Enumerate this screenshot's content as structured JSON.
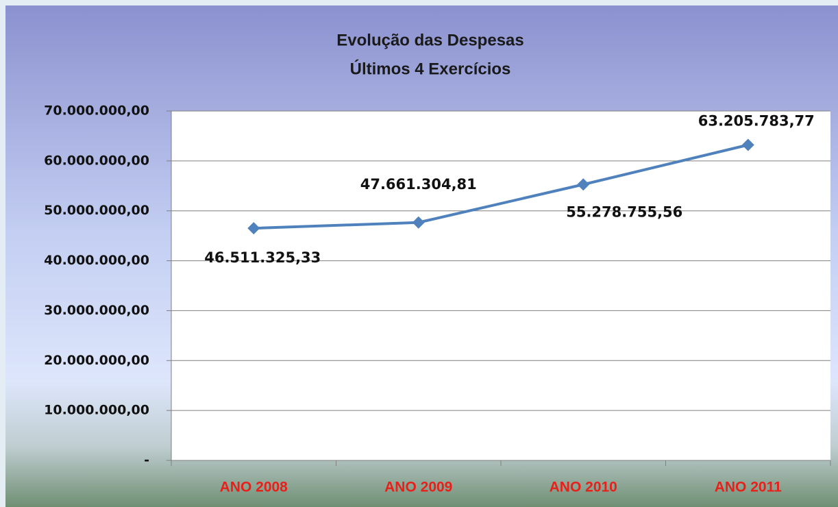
{
  "chart_data": {
    "type": "line",
    "title": "Evolução das Despesas",
    "subtitle": "Últimos 4 Exercícios",
    "categories": [
      "ANO 2008",
      "ANO 2009",
      "ANO 2010",
      "ANO 2011"
    ],
    "series": [
      {
        "name": "Despesas",
        "color": "#4f81bd",
        "values": [
          46511325.33,
          47661304.81,
          55278755.56,
          63205783.77
        ],
        "value_labels": [
          "46.511.325,33",
          "47.661.304,81",
          "55.278.755,56",
          "63.205.783,77"
        ]
      }
    ],
    "ylim": [
      0,
      70000000
    ],
    "yticks": [
      {
        "value": 0,
        "label": "-"
      },
      {
        "value": 10000000,
        "label": "10.000.000,00"
      },
      {
        "value": 20000000,
        "label": "20.000.000,00"
      },
      {
        "value": 30000000,
        "label": "30.000.000,00"
      },
      {
        "value": 40000000,
        "label": "40.000.000,00"
      },
      {
        "value": 50000000,
        "label": "50.000.000,00"
      },
      {
        "value": 60000000,
        "label": "60.000.000,00"
      },
      {
        "value": 70000000,
        "label": "70.000.000,00"
      }
    ],
    "grid": true
  }
}
